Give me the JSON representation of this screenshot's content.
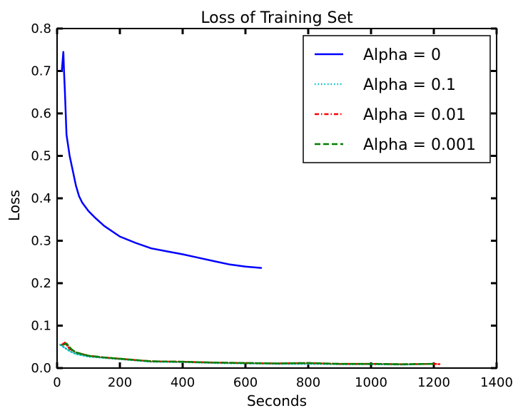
{
  "chart_data": {
    "type": "line",
    "title": "Loss of Training Set",
    "xlabel": "Seconds",
    "ylabel": "Loss",
    "xlim": [
      0,
      1400
    ],
    "ylim": [
      0.0,
      0.8
    ],
    "xticks": [
      0,
      200,
      400,
      600,
      800,
      1000,
      1200,
      1400
    ],
    "xtick_labels": [
      "0",
      "200",
      "400",
      "600",
      "800",
      "1000",
      "1200",
      "1400"
    ],
    "yticks": [
      0.0,
      0.1,
      0.2,
      0.3,
      0.4,
      0.5,
      0.6,
      0.7,
      0.8
    ],
    "ytick_labels": [
      "0.0",
      "0.1",
      "0.2",
      "0.3",
      "0.4",
      "0.5",
      "0.6",
      "0.7",
      "0.8"
    ],
    "grid": false,
    "legend_position": "top-right",
    "series": [
      {
        "name": "Alpha = 0",
        "color": "#0000ff",
        "style": "solid",
        "x": [
          15,
          20,
          22,
          25,
          30,
          40,
          50,
          60,
          70,
          80,
          100,
          120,
          150,
          200,
          250,
          300,
          350,
          400,
          450,
          500,
          550,
          600,
          650
        ],
        "y": [
          0.7,
          0.745,
          0.7,
          0.65,
          0.55,
          0.5,
          0.465,
          0.43,
          0.405,
          0.39,
          0.37,
          0.355,
          0.335,
          0.31,
          0.295,
          0.282,
          0.275,
          0.268,
          0.26,
          0.252,
          0.244,
          0.239,
          0.236
        ]
      },
      {
        "name": "Alpha = 0.1",
        "color": "#00bfbf",
        "style": "dotted",
        "x": [
          10,
          20,
          40,
          60,
          100,
          150,
          200,
          250,
          300,
          400,
          500,
          600,
          700,
          800,
          900,
          1000,
          1100,
          1200
        ],
        "y": [
          0.055,
          0.05,
          0.04,
          0.033,
          0.027,
          0.024,
          0.021,
          0.018,
          0.015,
          0.014,
          0.012,
          0.011,
          0.01,
          0.01,
          0.009,
          0.009,
          0.008,
          0.01
        ]
      },
      {
        "name": "Alpha = 0.01",
        "color": "#ff0000",
        "style": "dashdot",
        "x": [
          15,
          25,
          40,
          60,
          100,
          150,
          200,
          250,
          300,
          400,
          500,
          600,
          700,
          800,
          900,
          1000,
          1100,
          1200,
          1220
        ],
        "y": [
          0.055,
          0.06,
          0.045,
          0.037,
          0.029,
          0.025,
          0.022,
          0.019,
          0.016,
          0.015,
          0.013,
          0.012,
          0.011,
          0.012,
          0.01,
          0.01,
          0.009,
          0.01,
          0.009
        ]
      },
      {
        "name": "Alpha = 0.001",
        "color": "#008000",
        "style": "dashed",
        "x": [
          20,
          30,
          45,
          60,
          100,
          150,
          200,
          250,
          300,
          400,
          500,
          600,
          700,
          800,
          900,
          1000,
          1100,
          1200
        ],
        "y": [
          0.055,
          0.058,
          0.045,
          0.037,
          0.029,
          0.025,
          0.022,
          0.019,
          0.016,
          0.015,
          0.013,
          0.012,
          0.011,
          0.012,
          0.01,
          0.01,
          0.009,
          0.01
        ]
      }
    ]
  }
}
